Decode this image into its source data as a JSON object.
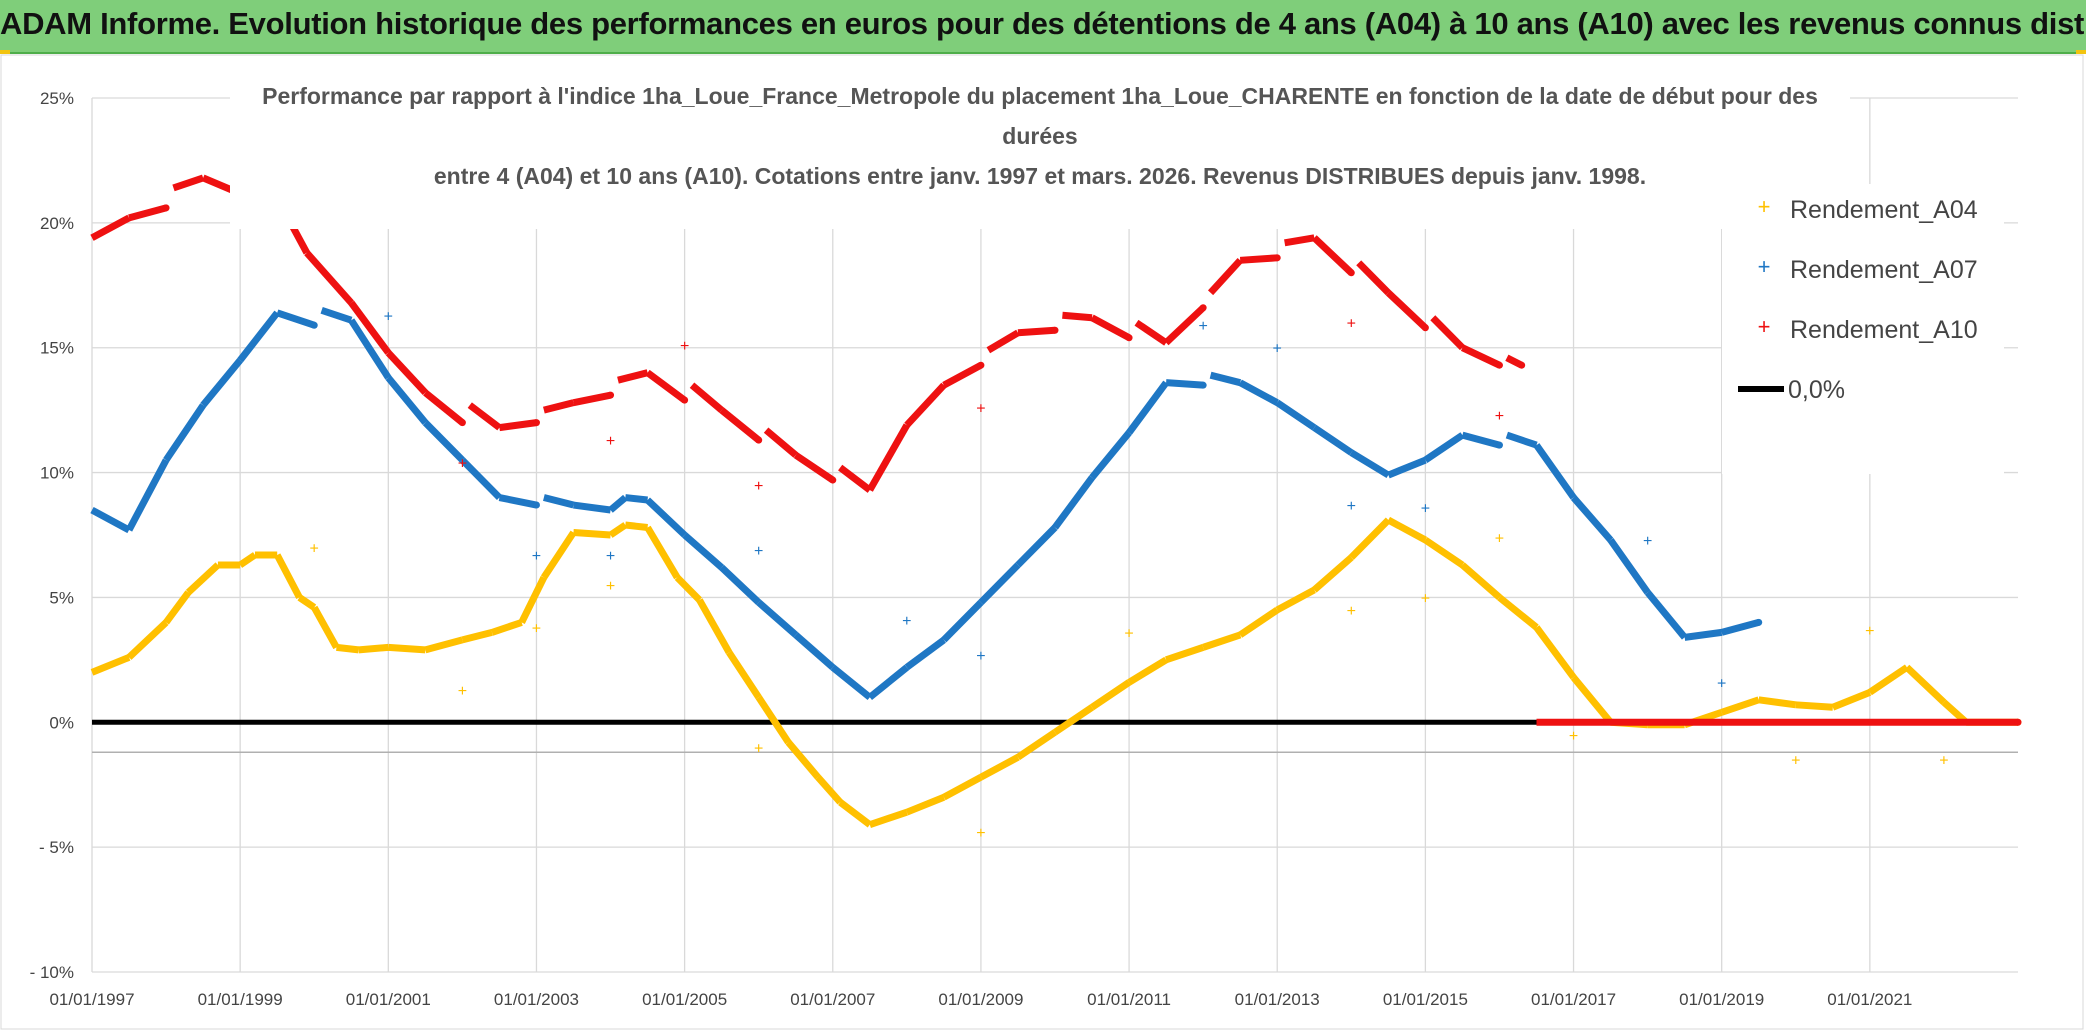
{
  "header": {
    "title": "ADAM Informe. Evolution historique des performances en euros pour des détentions de 4 ans (A04) à 10 ans (A10) avec les revenus connus distribués"
  },
  "colors": {
    "banner": "#7fce7a",
    "a04": "#ffc000",
    "a07": "#1f77c4",
    "a10": "#ee1111",
    "zero": "#000000"
  },
  "chart_data": {
    "type": "scatter",
    "title_lines": [
      "Performance par rapport à l'indice 1ha_Loue_France_Metropole  du placement 1ha_Loue_CHARENTE en fonction de la date de début pour des",
      "durées",
      "entre 4 (A04) et 10 ans (A10). Cotations entre janv. 1997 et mars. 2026. Revenus DISTRIBUES depuis janv. 1998."
    ],
    "xlabel": "",
    "ylabel": "",
    "xlim": [
      1997.0,
      2023.0
    ],
    "ylim": [
      -10,
      25
    ],
    "y_ticks": [
      {
        "value": 25,
        "label": "25%"
      },
      {
        "value": 20,
        "label": "20%"
      },
      {
        "value": 15,
        "label": "15%"
      },
      {
        "value": 10,
        "label": "10%"
      },
      {
        "value": 5,
        "label": "5%"
      },
      {
        "value": 0,
        "label": "0%"
      },
      {
        "value": -5,
        "label": "- 5%"
      },
      {
        "value": -10,
        "label": "- 10%"
      }
    ],
    "x_ticks": [
      {
        "value": 1997,
        "label": "01/01/1997"
      },
      {
        "value": 1999,
        "label": "01/01/1999"
      },
      {
        "value": 2001,
        "label": "01/01/2001"
      },
      {
        "value": 2003,
        "label": "01/01/2003"
      },
      {
        "value": 2005,
        "label": "01/01/2005"
      },
      {
        "value": 2007,
        "label": "01/01/2007"
      },
      {
        "value": 2009,
        "label": "01/01/2009"
      },
      {
        "value": 2011,
        "label": "01/01/2011"
      },
      {
        "value": 2013,
        "label": "01/01/2013"
      },
      {
        "value": 2015,
        "label": "01/01/2015"
      },
      {
        "value": 2017,
        "label": "01/01/2017"
      },
      {
        "value": 2019,
        "label": "01/01/2019"
      },
      {
        "value": 2021,
        "label": "01/01/2021"
      }
    ],
    "legend": [
      {
        "name": "Rendement_A04",
        "marker": "+",
        "color": "#ffc000"
      },
      {
        "name": "Rendement_A07",
        "marker": "+",
        "color": "#1f77c4"
      },
      {
        "name": "Rendement_A10",
        "marker": "+",
        "color": "#ee1111"
      },
      {
        "name": "0,0%",
        "marker": "line",
        "color": "#000000"
      }
    ],
    "legend_position": "right",
    "series": [
      {
        "name": "Rendement_A04",
        "color": "#ffc000",
        "points": [
          [
            1997.0,
            2.0
          ],
          [
            1997.5,
            2.6
          ],
          [
            1998.0,
            4.0
          ],
          [
            1998.3,
            5.2
          ],
          [
            1998.7,
            6.3
          ],
          [
            1999.0,
            6.3
          ],
          [
            1999.2,
            6.7
          ],
          [
            1999.5,
            6.7
          ],
          [
            1999.8,
            5.0
          ],
          [
            2000.0,
            4.6
          ],
          [
            2000.3,
            3.0
          ],
          [
            2000.6,
            2.9
          ],
          [
            2001.0,
            3.0
          ],
          [
            2001.5,
            2.9
          ],
          [
            2002.0,
            3.3
          ],
          [
            2002.4,
            3.6
          ],
          [
            2002.8,
            4.0
          ],
          [
            2003.1,
            5.8
          ],
          [
            2003.5,
            7.6
          ],
          [
            2004.0,
            7.5
          ],
          [
            2004.2,
            7.9
          ],
          [
            2004.5,
            7.8
          ],
          [
            2004.9,
            5.8
          ],
          [
            2005.2,
            4.9
          ],
          [
            2005.6,
            2.8
          ],
          [
            2006.0,
            1.0
          ],
          [
            2006.4,
            -0.8
          ],
          [
            2006.8,
            -2.2
          ],
          [
            2007.1,
            -3.2
          ],
          [
            2007.5,
            -4.1
          ],
          [
            2008.0,
            -3.6
          ],
          [
            2008.5,
            -3.0
          ],
          [
            2009.0,
            -2.2
          ],
          [
            2009.5,
            -1.4
          ],
          [
            2010.0,
            -0.4
          ],
          [
            2010.5,
            0.6
          ],
          [
            2011.0,
            1.6
          ],
          [
            2011.5,
            2.5
          ],
          [
            2012.0,
            3.0
          ],
          [
            2012.5,
            3.5
          ],
          [
            2013.0,
            4.5
          ],
          [
            2013.5,
            5.3
          ],
          [
            2014.0,
            6.6
          ],
          [
            2014.5,
            8.1
          ],
          [
            2015.0,
            7.3
          ],
          [
            2015.5,
            6.3
          ],
          [
            2016.0,
            5.0
          ],
          [
            2016.5,
            3.8
          ],
          [
            2017.0,
            1.8
          ],
          [
            2017.5,
            0.0
          ],
          [
            2018.0,
            -0.1
          ],
          [
            2018.5,
            -0.1
          ],
          [
            2019.0,
            0.4
          ],
          [
            2019.5,
            0.9
          ],
          [
            2020.0,
            0.7
          ],
          [
            2020.5,
            0.6
          ],
          [
            2021.0,
            1.2
          ],
          [
            2021.5,
            2.2
          ],
          [
            2022.0,
            0.8
          ],
          [
            2022.3,
            0.0
          ],
          [
            2023.0,
            0.0
          ]
        ],
        "outliers": [
          [
            2000.0,
            7.0
          ],
          [
            2002.0,
            1.3
          ],
          [
            2003.0,
            3.8
          ],
          [
            2004.0,
            5.5
          ],
          [
            2006.0,
            -1.0
          ],
          [
            2009.0,
            -4.4
          ],
          [
            2011.0,
            3.6
          ],
          [
            2014.0,
            4.5
          ],
          [
            2015.0,
            5.0
          ],
          [
            2016.0,
            7.4
          ],
          [
            2017.0,
            -0.5
          ],
          [
            2020.0,
            -1.5
          ],
          [
            2021.0,
            3.7
          ],
          [
            2022.0,
            -1.5
          ]
        ]
      },
      {
        "name": "Rendement_A07",
        "color": "#1f77c4",
        "points": [
          [
            1997.0,
            8.5
          ],
          [
            1997.5,
            7.7
          ],
          [
            1998.0,
            10.5
          ],
          [
            1998.5,
            12.7
          ],
          [
            1999.0,
            14.5
          ],
          [
            1999.5,
            16.4
          ],
          [
            2000.0,
            15.9
          ],
          [
            2000.1,
            16.5
          ],
          [
            2000.5,
            16.1
          ],
          [
            2001.0,
            13.8
          ],
          [
            2001.5,
            12.0
          ],
          [
            2002.0,
            10.5
          ],
          [
            2002.5,
            9.0
          ],
          [
            2003.0,
            8.7
          ],
          [
            2003.1,
            9.0
          ],
          [
            2003.5,
            8.7
          ],
          [
            2004.0,
            8.5
          ],
          [
            2004.2,
            9.0
          ],
          [
            2004.5,
            8.9
          ],
          [
            2005.0,
            7.5
          ],
          [
            2005.5,
            6.2
          ],
          [
            2006.0,
            4.8
          ],
          [
            2006.5,
            3.5
          ],
          [
            2007.0,
            2.2
          ],
          [
            2007.5,
            1.0
          ],
          [
            2008.0,
            2.2
          ],
          [
            2008.5,
            3.3
          ],
          [
            2009.0,
            4.8
          ],
          [
            2009.5,
            6.3
          ],
          [
            2010.0,
            7.8
          ],
          [
            2010.5,
            9.8
          ],
          [
            2011.0,
            11.6
          ],
          [
            2011.5,
            13.6
          ],
          [
            2012.0,
            13.5
          ],
          [
            2012.1,
            13.9
          ],
          [
            2012.5,
            13.6
          ],
          [
            2013.0,
            12.8
          ],
          [
            2013.5,
            11.8
          ],
          [
            2014.0,
            10.8
          ],
          [
            2014.5,
            9.9
          ],
          [
            2015.0,
            10.5
          ],
          [
            2015.5,
            11.5
          ],
          [
            2016.0,
            11.1
          ],
          [
            2016.1,
            11.5
          ],
          [
            2016.5,
            11.1
          ],
          [
            2017.0,
            9.0
          ],
          [
            2017.5,
            7.3
          ],
          [
            2018.0,
            5.2
          ],
          [
            2018.5,
            3.4
          ],
          [
            2019.0,
            3.6
          ],
          [
            2019.5,
            4.0
          ]
        ],
        "outliers": [
          [
            2001.0,
            16.3
          ],
          [
            2003.0,
            6.7
          ],
          [
            2004.0,
            6.7
          ],
          [
            2006.0,
            6.9
          ],
          [
            2008.0,
            4.1
          ],
          [
            2009.0,
            2.7
          ],
          [
            2012.0,
            15.9
          ],
          [
            2013.0,
            15.0
          ],
          [
            2014.0,
            8.7
          ],
          [
            2015.0,
            8.6
          ],
          [
            2018.0,
            7.3
          ],
          [
            2019.0,
            1.6
          ]
        ]
      },
      {
        "name": "Rendement_A10",
        "color": "#ee1111",
        "points": [
          [
            1997.0,
            19.4
          ],
          [
            1997.5,
            20.2
          ],
          [
            1998.0,
            20.6
          ],
          [
            1998.1,
            21.4
          ],
          [
            1998.5,
            21.8
          ],
          [
            1998.9,
            21.3
          ],
          [
            1999.5,
            21.0
          ],
          [
            1999.9,
            18.8
          ],
          [
            2000.5,
            16.8
          ],
          [
            2001.0,
            14.8
          ],
          [
            2001.5,
            13.2
          ],
          [
            2002.0,
            12.0
          ],
          [
            2002.1,
            12.7
          ],
          [
            2002.5,
            11.8
          ],
          [
            2003.0,
            12.0
          ],
          [
            2003.1,
            12.5
          ],
          [
            2003.5,
            12.8
          ],
          [
            2004.0,
            13.1
          ],
          [
            2004.1,
            13.7
          ],
          [
            2004.5,
            14.0
          ],
          [
            2005.0,
            12.9
          ],
          [
            2005.1,
            13.5
          ],
          [
            2005.5,
            12.5
          ],
          [
            2006.0,
            11.3
          ],
          [
            2006.1,
            11.7
          ],
          [
            2006.5,
            10.7
          ],
          [
            2007.0,
            9.7
          ],
          [
            2007.1,
            10.2
          ],
          [
            2007.5,
            9.3
          ],
          [
            2008.0,
            11.9
          ],
          [
            2008.5,
            13.5
          ],
          [
            2009.0,
            14.3
          ],
          [
            2009.1,
            14.9
          ],
          [
            2009.5,
            15.6
          ],
          [
            2010.0,
            15.7
          ],
          [
            2010.1,
            16.3
          ],
          [
            2010.5,
            16.2
          ],
          [
            2011.0,
            15.4
          ],
          [
            2011.1,
            16.0
          ],
          [
            2011.5,
            15.2
          ],
          [
            2012.0,
            16.6
          ],
          [
            2012.1,
            17.2
          ],
          [
            2012.5,
            18.5
          ],
          [
            2013.0,
            18.6
          ],
          [
            2013.1,
            19.2
          ],
          [
            2013.5,
            19.4
          ],
          [
            2014.0,
            18.0
          ],
          [
            2014.1,
            18.4
          ],
          [
            2014.5,
            17.2
          ],
          [
            2015.0,
            15.8
          ],
          [
            2015.1,
            16.2
          ],
          [
            2015.5,
            15.0
          ],
          [
            2016.0,
            14.3
          ],
          [
            2016.1,
            14.6
          ],
          [
            2016.3,
            14.3
          ],
          [
            2016.5,
            0.0
          ],
          [
            2023.0,
            0.0
          ]
        ],
        "outliers": [
          [
            2002.0,
            10.4
          ],
          [
            2004.0,
            11.3
          ],
          [
            2005.0,
            15.1
          ],
          [
            2006.0,
            9.5
          ],
          [
            2009.0,
            12.6
          ],
          [
            2014.0,
            16.0
          ],
          [
            2016.0,
            12.3
          ]
        ]
      }
    ],
    "reference_line": {
      "name": "0,0%",
      "value": 0
    }
  }
}
